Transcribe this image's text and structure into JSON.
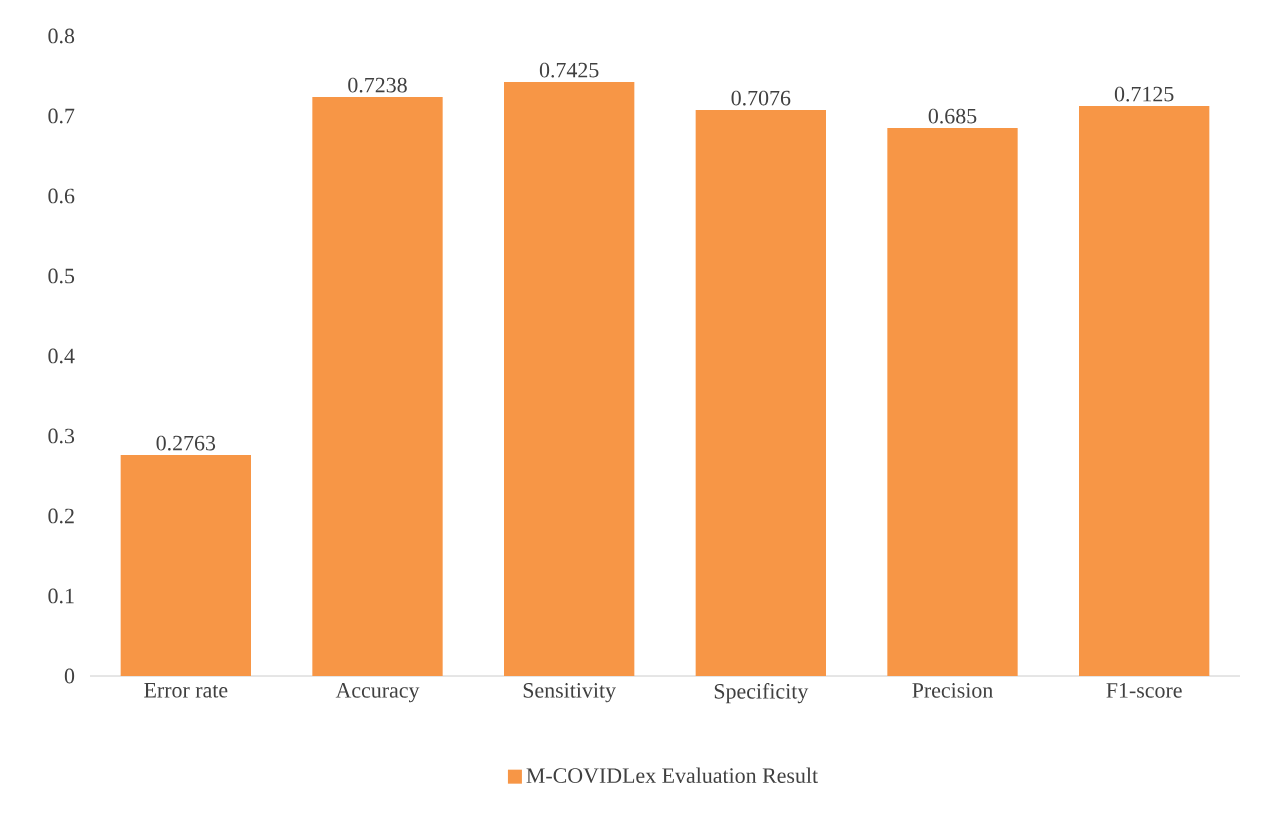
{
  "chart_data": {
    "type": "bar",
    "categories": [
      "Error rate",
      "Accuracy",
      "Sensitivity",
      "Specificity",
      "Precision",
      "F1-score"
    ],
    "series": [
      {
        "name": "M-COVIDLex Evaluation Result",
        "color": "#f79646",
        "values": [
          0.2763,
          0.7238,
          0.7425,
          0.7076,
          0.685,
          0.7125
        ]
      }
    ],
    "ylim": [
      0,
      0.8
    ],
    "yticks": [
      0,
      0.1,
      0.2,
      0.3,
      0.4,
      0.5,
      0.6,
      0.7,
      0.8
    ],
    "data_labels": true,
    "legend": "bottom"
  }
}
